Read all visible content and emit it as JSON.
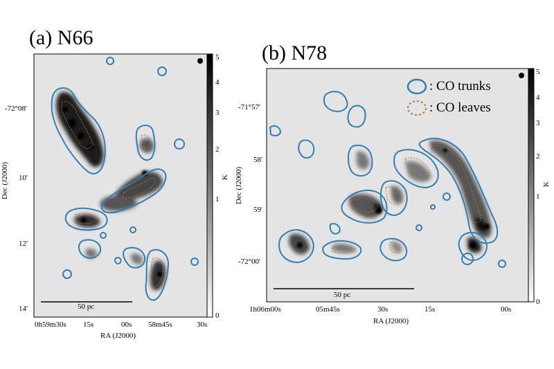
{
  "panels": [
    {
      "id": "a",
      "title": "(a) N66",
      "dec_ticks": [
        "-72°08'",
        "10'",
        "12'",
        "14'"
      ],
      "ra_ticks": [
        "0h59m30s",
        "15s",
        "00s",
        "58m45s",
        "30s"
      ],
      "xlabel": "RA (J2000)",
      "ylabel": "Dec (J2000)",
      "colorbar_label": "K",
      "colorbar_ticks": [
        "0",
        "1",
        "2",
        "3",
        "4",
        "5"
      ],
      "scale_bar_label": "50 pc"
    },
    {
      "id": "b",
      "title": "(b) N78",
      "dec_ticks": [
        "-71°57'",
        "58'",
        "59'",
        "-72°00'"
      ],
      "ra_ticks": [
        "1h06m00s",
        "05m45s",
        "30s",
        "15s",
        "00s"
      ],
      "xlabel": "RA (J2000)",
      "ylabel": "Dec (J2000)",
      "colorbar_label": "K",
      "colorbar_ticks": [
        "0",
        "1",
        "2",
        "3",
        "4",
        "5"
      ],
      "scale_bar_label": "50 pc"
    }
  ],
  "legend": {
    "trunks": "CO trunks",
    "leaves": "CO leaves"
  },
  "colors": {
    "trunk": "#2f7fb5",
    "leaf": "#b8743a",
    "background": "#e6e6e6"
  }
}
